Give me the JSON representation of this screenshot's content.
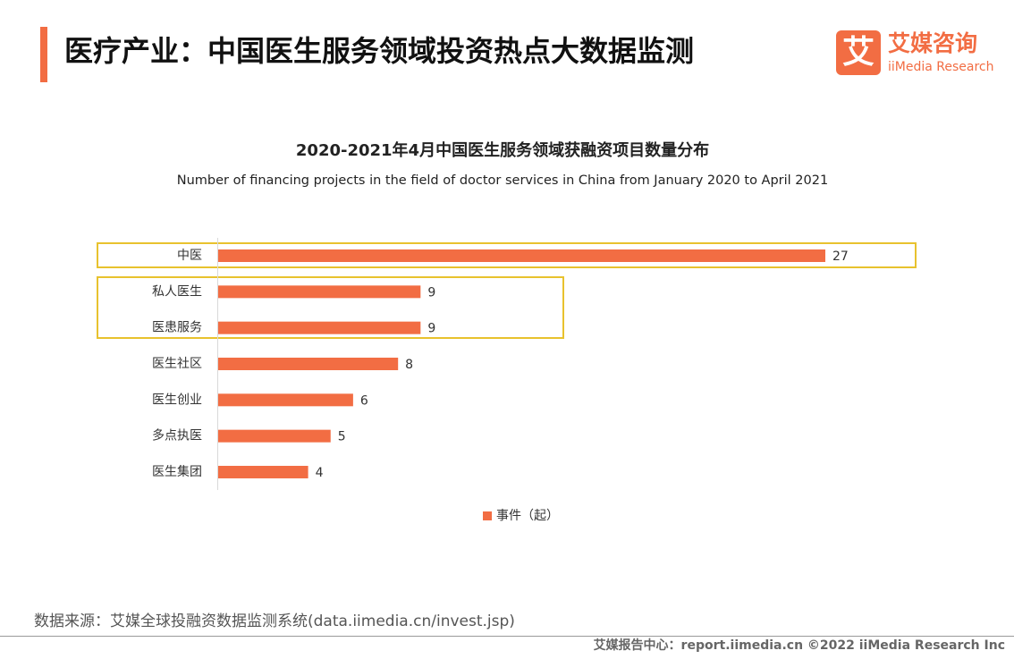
{
  "header": {
    "title": "医疗产业：中国医生服务领域投资热点大数据监测",
    "logo_mark": "艾",
    "logo_name": "艾媒咨询",
    "logo_en": "iiMedia Research"
  },
  "chart_data": {
    "type": "barh",
    "title": "2020-2021年4月中国医生服务领域获融资项目数量分布",
    "subtitle": "Number of financing projects in the field of doctor services in China from January 2020 to April 2021",
    "categories": [
      "中医",
      "私人医生",
      "医患服务",
      "医生社区",
      "医生创业",
      "多点执医",
      "医生集团"
    ],
    "series": [
      {
        "name": "事件（起）",
        "color": "#f26d43",
        "values": [
          27,
          9,
          9,
          8,
          6,
          5,
          4
        ]
      }
    ]
  },
  "footer": {
    "source": "数据来源：艾媒全球投融资数据监测系统(data.iimedia.cn/invest.jsp)",
    "credit": "艾媒报告中心：report.iimedia.cn  ©2022  iiMedia Research  Inc"
  }
}
